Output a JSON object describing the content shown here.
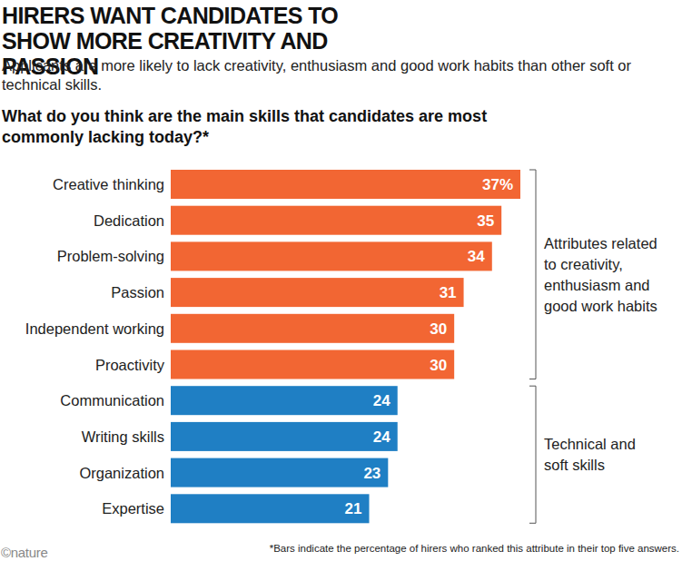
{
  "chart_data": {
    "type": "bar",
    "orientation": "horizontal",
    "title": "HIRERS WANT CANDIDATES TO SHOW MORE CREATIVITY AND PASSION",
    "subtitle": "Applicants are more likely to lack creativity, enthusiasm and good work habits than other soft or technical skills.",
    "annotations": [
      "What do you think are the main skills that candidates are most commonly lacking today?*",
      "*Bars indicate the percentage of hirers who ranked this attribute in their top five answers.",
      "©nature"
    ],
    "categories": [
      "Creative thinking",
      "Dedication",
      "Problem-solving",
      "Passion",
      "Independent working",
      "Proactivity",
      "Communication",
      "Writing skills",
      "Organization",
      "Expertise"
    ],
    "series": [
      {
        "name": "Attributes related to creativity, enthusiasm and good work habits",
        "color": "#f26633",
        "values": [
          37,
          35,
          34,
          31,
          30,
          30,
          null,
          null,
          null,
          null
        ],
        "value_labels": [
          "37%",
          "35",
          "34",
          "31",
          "30",
          "30",
          null,
          null,
          null,
          null
        ]
      },
      {
        "name": "Technical and soft skills",
        "color": "#1f7fc4",
        "values": [
          null,
          null,
          null,
          null,
          null,
          null,
          24,
          24,
          23,
          21
        ]
      }
    ],
    "xlim": [
      0,
      37
    ],
    "tick_labels": false,
    "data_labels": true,
    "grid": false
  }
}
